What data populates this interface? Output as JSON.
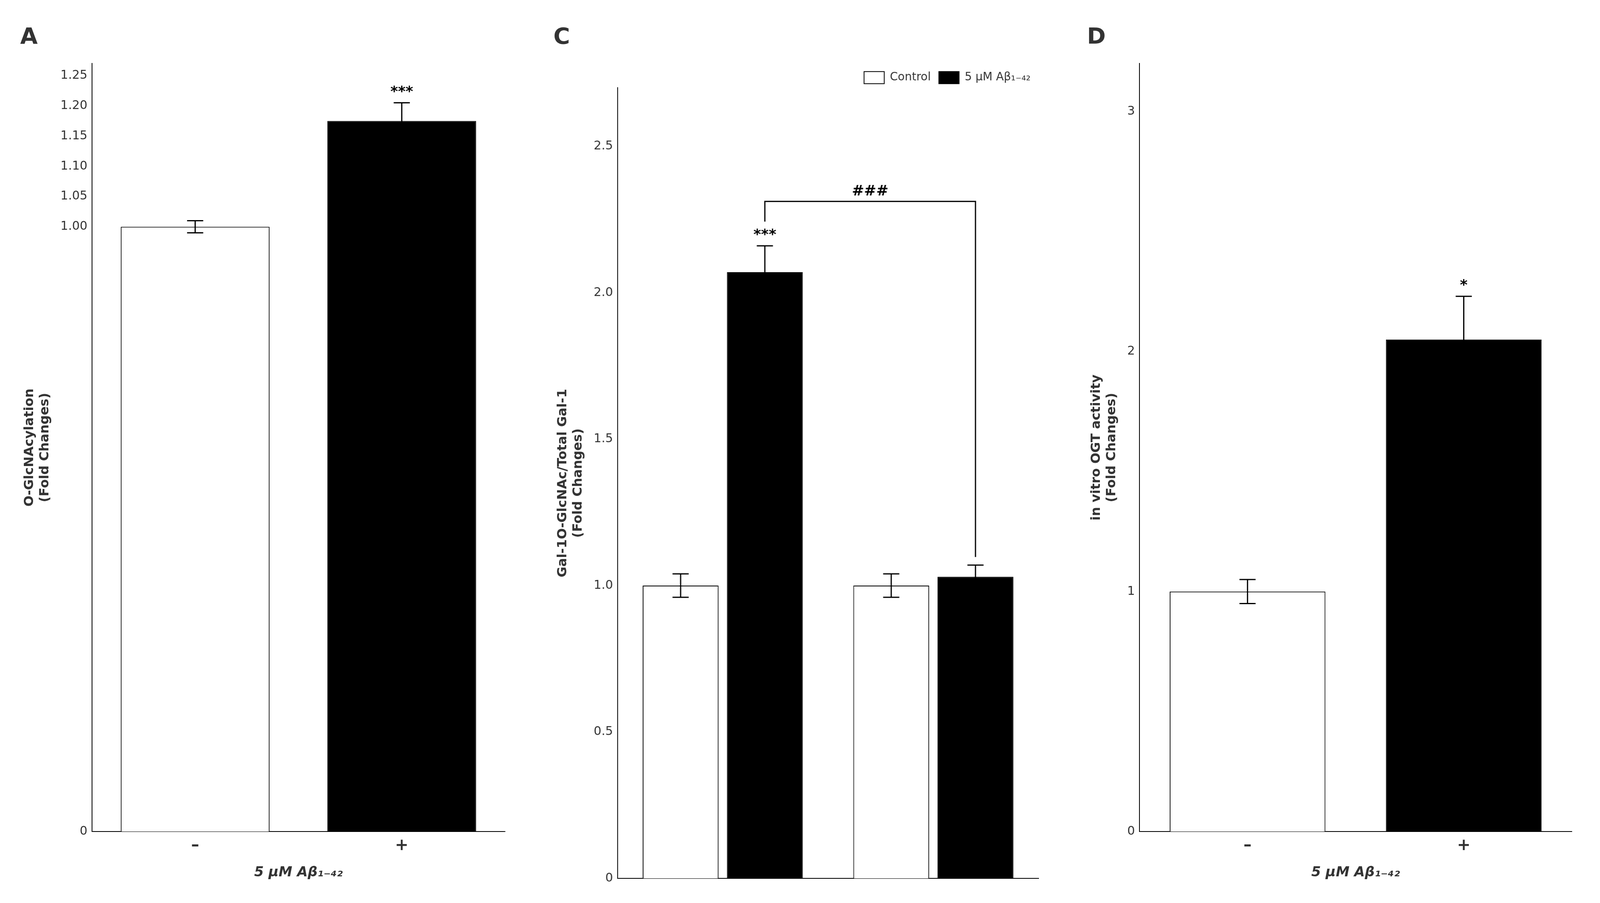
{
  "chart_data": [
    {
      "type": "bar",
      "title": "A",
      "categories": [
        "–",
        "+"
      ],
      "values": [
        1.0,
        1.175
      ],
      "errors": [
        0.01,
        0.03
      ],
      "colors": [
        "white",
        "black"
      ],
      "ylabel": "O-GlcNAcylation\n(Fold Changes)",
      "xlabel": "5 μM Aβ₁₋₄₂",
      "ylim": [
        0,
        1.27
      ],
      "yticks": [
        0,
        {
          "value": 1.0,
          "label": "1.00"
        },
        1.05,
        {
          "value": 1.1,
          "label": "1.10"
        },
        1.15,
        {
          "value": 1.2,
          "label": "1.20"
        },
        1.25
      ],
      "annotations": [
        {
          "text": "***",
          "x": "+"
        }
      ],
      "grid": false
    },
    {
      "type": "bar",
      "title": "C",
      "categories": [
        null,
        null
      ],
      "series": [
        {
          "name": "Control",
          "color": "white",
          "values": [
            1.0,
            1.0
          ],
          "errors": [
            0.04,
            0.04
          ]
        },
        {
          "name": "5 μM Aβ₁₋₄₂",
          "color": "black",
          "values": [
            2.07,
            1.03
          ],
          "errors": [
            0.09,
            0.04
          ]
        }
      ],
      "ylabel": "Gal-1O-GlcNAc/Total Gal-1\n(Fold Changes)",
      "ylim": [
        0,
        2.7
      ],
      "yticks": [
        0,
        0.5,
        {
          "value": 1.0,
          "label": "1.0"
        },
        1.5,
        {
          "value": 2.0,
          "label": "2.0"
        },
        2.5
      ],
      "annotations": [
        {
          "text": "***",
          "series": "5 μM Aβ₁₋₄₂",
          "x": 0
        },
        {
          "text": "###",
          "series": "5 μM Aβ₁₋₄₂",
          "x": [
            0,
            1
          ]
        }
      ],
      "legend": "upper right",
      "tick_labels": "y",
      "grid": false
    },
    {
      "type": "bar",
      "title": "D",
      "categories": [
        "–",
        "+"
      ],
      "values": [
        1.0,
        2.05
      ],
      "errors": [
        0.05,
        0.18
      ],
      "colors": [
        "white",
        "black"
      ],
      "ylabel": "in vitro OGT activity\n(Fold Changes)",
      "xlabel": "5 μM Aβ₁₋₄₂",
      "ylim": [
        0,
        3.2
      ],
      "yticks": [
        0,
        1,
        2,
        3
      ],
      "annotations": [
        {
          "text": "*",
          "x": "+"
        }
      ],
      "grid": false
    }
  ]
}
